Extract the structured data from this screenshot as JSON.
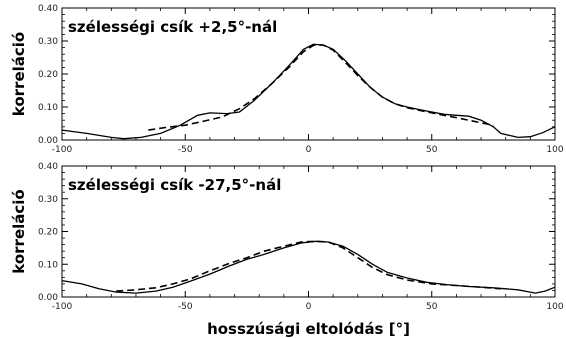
{
  "chart_data": [
    {
      "type": "line",
      "annotation": "szélességi csík +2,5°-nál",
      "ylabel": "korreláció",
      "xlabel": "",
      "xlim": [
        -100,
        100
      ],
      "ylim": [
        0,
        0.4
      ],
      "xticks": [
        "-100",
        "-50",
        "0",
        "50",
        "100"
      ],
      "yticks": [
        "0.00",
        "0.10",
        "0.20",
        "0.30",
        "0.40"
      ],
      "series": [
        {
          "style": "solid",
          "points": [
            [
              -100,
              0.03
            ],
            [
              -90,
              0.02
            ],
            [
              -80,
              0.008
            ],
            [
              -75,
              0.004
            ],
            [
              -68,
              0.008
            ],
            [
              -60,
              0.02
            ],
            [
              -52,
              0.045
            ],
            [
              -45,
              0.075
            ],
            [
              -40,
              0.082
            ],
            [
              -33,
              0.08
            ],
            [
              -28,
              0.085
            ],
            [
              -22,
              0.12
            ],
            [
              -15,
              0.17
            ],
            [
              -8,
              0.225
            ],
            [
              -2,
              0.275
            ],
            [
              2,
              0.29
            ],
            [
              6,
              0.288
            ],
            [
              10,
              0.275
            ],
            [
              15,
              0.24
            ],
            [
              20,
              0.2
            ],
            [
              25,
              0.16
            ],
            [
              30,
              0.13
            ],
            [
              35,
              0.11
            ],
            [
              40,
              0.1
            ],
            [
              45,
              0.092
            ],
            [
              50,
              0.085
            ],
            [
              55,
              0.078
            ],
            [
              60,
              0.075
            ],
            [
              65,
              0.072
            ],
            [
              70,
              0.06
            ],
            [
              75,
              0.04
            ],
            [
              78,
              0.02
            ],
            [
              85,
              0.008
            ],
            [
              90,
              0.01
            ],
            [
              95,
              0.022
            ],
            [
              100,
              0.04
            ]
          ]
        },
        {
          "style": "dashed",
          "points": [
            [
              -65,
              0.03
            ],
            [
              -58,
              0.038
            ],
            [
              -50,
              0.045
            ],
            [
              -42,
              0.058
            ],
            [
              -35,
              0.07
            ],
            [
              -28,
              0.095
            ],
            [
              -22,
              0.125
            ],
            [
              -15,
              0.17
            ],
            [
              -8,
              0.22
            ],
            [
              -2,
              0.268
            ],
            [
              2,
              0.287
            ],
            [
              6,
              0.288
            ],
            [
              10,
              0.272
            ],
            [
              15,
              0.235
            ],
            [
              20,
              0.195
            ],
            [
              25,
              0.16
            ],
            [
              30,
              0.13
            ],
            [
              35,
              0.11
            ],
            [
              40,
              0.098
            ],
            [
              45,
              0.09
            ],
            [
              50,
              0.082
            ],
            [
              55,
              0.075
            ],
            [
              60,
              0.068
            ],
            [
              65,
              0.06
            ],
            [
              70,
              0.052
            ],
            [
              75,
              0.045
            ]
          ]
        }
      ]
    },
    {
      "type": "line",
      "annotation": "szélességi csík -27,5°-nál",
      "ylabel": "korreláció",
      "xlabel": "hosszúsági eltolódás [°]",
      "xlim": [
        -100,
        100
      ],
      "ylim": [
        0,
        0.4
      ],
      "xticks": [
        "-100",
        "-50",
        "0",
        "50",
        "100"
      ],
      "yticks": [
        "0.00",
        "0.10",
        "0.20",
        "0.30",
        "0.40"
      ],
      "series": [
        {
          "style": "solid",
          "points": [
            [
              -100,
              0.05
            ],
            [
              -92,
              0.04
            ],
            [
              -85,
              0.025
            ],
            [
              -78,
              0.015
            ],
            [
              -70,
              0.012
            ],
            [
              -62,
              0.018
            ],
            [
              -55,
              0.03
            ],
            [
              -48,
              0.048
            ],
            [
              -40,
              0.07
            ],
            [
              -32,
              0.095
            ],
            [
              -25,
              0.115
            ],
            [
              -18,
              0.13
            ],
            [
              -10,
              0.15
            ],
            [
              -3,
              0.165
            ],
            [
              3,
              0.17
            ],
            [
              8,
              0.168
            ],
            [
              14,
              0.155
            ],
            [
              20,
              0.13
            ],
            [
              26,
              0.1
            ],
            [
              32,
              0.075
            ],
            [
              40,
              0.058
            ],
            [
              48,
              0.045
            ],
            [
              56,
              0.038
            ],
            [
              65,
              0.032
            ],
            [
              75,
              0.028
            ],
            [
              85,
              0.022
            ],
            [
              92,
              0.012
            ],
            [
              96,
              0.018
            ],
            [
              100,
              0.03
            ]
          ]
        },
        {
          "style": "dashed",
          "points": [
            [
              -78,
              0.018
            ],
            [
              -70,
              0.022
            ],
            [
              -62,
              0.028
            ],
            [
              -55,
              0.04
            ],
            [
              -48,
              0.055
            ],
            [
              -40,
              0.08
            ],
            [
              -32,
              0.103
            ],
            [
              -25,
              0.12
            ],
            [
              -18,
              0.14
            ],
            [
              -10,
              0.155
            ],
            [
              -3,
              0.168
            ],
            [
              3,
              0.17
            ],
            [
              8,
              0.168
            ],
            [
              14,
              0.15
            ],
            [
              20,
              0.12
            ],
            [
              26,
              0.09
            ],
            [
              32,
              0.068
            ],
            [
              40,
              0.052
            ],
            [
              50,
              0.04
            ],
            [
              60,
              0.035
            ],
            [
              70,
              0.03
            ],
            [
              78,
              0.025
            ]
          ]
        }
      ]
    }
  ]
}
